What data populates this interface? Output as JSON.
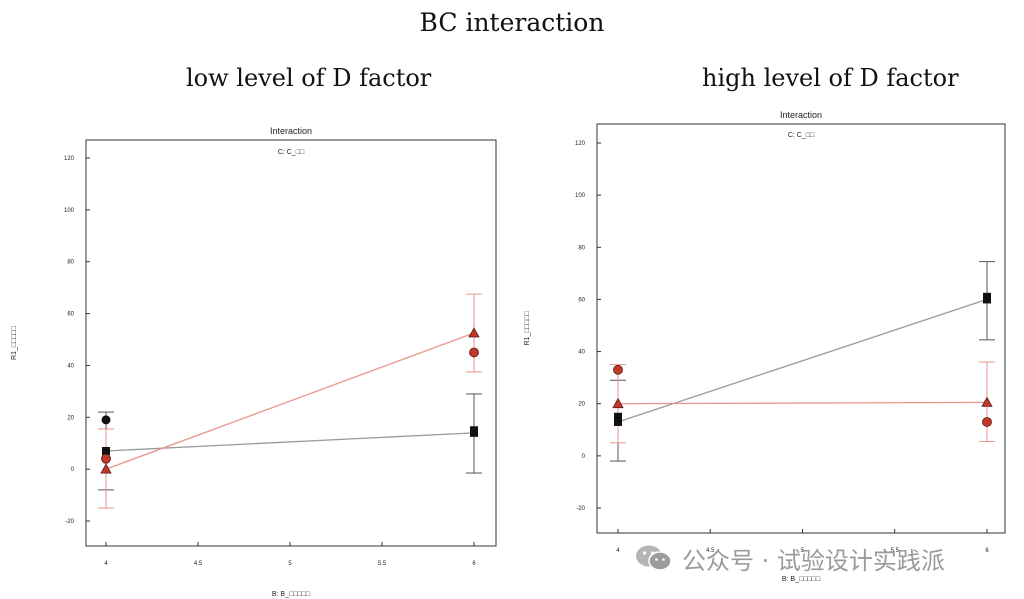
{
  "page": {
    "title": "BC interaction",
    "watermark_text": "公众号 · 试验设计实践派",
    "watermark_icon": "wechat-logo"
  },
  "colors": {
    "black_series": "#111111",
    "red_series": "#c0392b",
    "red_line": "#e8968c",
    "gray_line": "#9a9a9a",
    "frame": "#333333"
  },
  "panels": [
    {
      "heading": "low level of D factor"
    },
    {
      "heading": "high level of D factor"
    }
  ],
  "chart_data": [
    {
      "type": "line",
      "title": "Interaction",
      "subtitle": "C: C_□□",
      "xlabel": "B: B_□□□□□",
      "ylabel": "R1_□□□□□",
      "xlim": [
        3.9,
        6.15
      ],
      "ylim": [
        -27,
        125
      ],
      "x_ticks": [
        4,
        4.5,
        5,
        5.5,
        6
      ],
      "y_ticks": [
        -20,
        0,
        20,
        40,
        60,
        80,
        100,
        120
      ],
      "grid": false,
      "series": [
        {
          "color": "black",
          "x": [
            4,
            6
          ],
          "y": [
            7,
            14
          ],
          "error_bars": [
            [
              -8,
              22
            ],
            [
              -1.5,
              29
            ]
          ],
          "points": [
            {
              "x": 4,
              "y": 19,
              "marker": "circle"
            },
            {
              "x": 4,
              "y": 7,
              "marker": "square"
            },
            {
              "x": 6,
              "y": 15,
              "marker": "square"
            },
            {
              "x": 6,
              "y": 14,
              "marker": "square"
            }
          ]
        },
        {
          "color": "red",
          "x": [
            4,
            6
          ],
          "y": [
            0,
            52.5
          ],
          "error_bars": [
            [
              -15,
              15.5
            ],
            [
              37.5,
              67.5
            ]
          ],
          "points": [
            {
              "x": 4,
              "y": 4,
              "marker": "circle"
            },
            {
              "x": 4,
              "y": 0,
              "marker": "triangle"
            },
            {
              "x": 6,
              "y": 45,
              "marker": "circle"
            },
            {
              "x": 6,
              "y": 52.5,
              "marker": "triangle"
            }
          ]
        }
      ]
    },
    {
      "type": "line",
      "title": "Interaction",
      "subtitle": "C: C_□□",
      "xlabel": "B: B_□□□□□",
      "ylabel": "R1_□□□□□",
      "xlim": [
        3.9,
        6.15
      ],
      "ylim": [
        -27,
        125
      ],
      "x_ticks": [
        4,
        4.5,
        5,
        5.5,
        6
      ],
      "y_ticks": [
        -20,
        0,
        20,
        40,
        60,
        80,
        100,
        120
      ],
      "grid": false,
      "series": [
        {
          "color": "black",
          "x": [
            4,
            6
          ],
          "y": [
            13,
            60
          ],
          "error_bars": [
            [
              -2,
              29
            ],
            [
              44.5,
              74.5
            ]
          ],
          "points": [
            {
              "x": 4,
              "y": 15,
              "marker": "square"
            },
            {
              "x": 4,
              "y": 13,
              "marker": "square"
            },
            {
              "x": 6,
              "y": 61,
              "marker": "square"
            },
            {
              "x": 6,
              "y": 60,
              "marker": "square"
            }
          ]
        },
        {
          "color": "red",
          "x": [
            4,
            6
          ],
          "y": [
            20,
            20.5
          ],
          "error_bars": [
            [
              5,
              35
            ],
            [
              5.5,
              36
            ]
          ],
          "points": [
            {
              "x": 4,
              "y": 33,
              "marker": "circle"
            },
            {
              "x": 4,
              "y": 20,
              "marker": "triangle"
            },
            {
              "x": 6,
              "y": 13,
              "marker": "circle"
            },
            {
              "x": 6,
              "y": 20.5,
              "marker": "triangle"
            }
          ]
        }
      ]
    }
  ]
}
